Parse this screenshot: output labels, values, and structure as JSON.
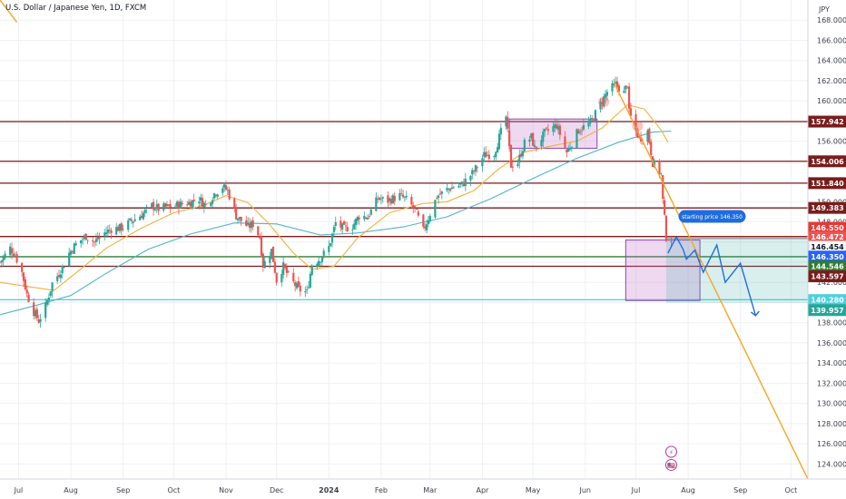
{
  "header": {
    "title": "U.S. Dollar / Japanese Yen, 1D, FXCM",
    "currency": "JPY"
  },
  "colors": {
    "up": "#26a69a",
    "down": "#ef5350",
    "level": "#7a1c1c",
    "ma_fast": "#f0b23c",
    "ma_slow": "#4fb5c8",
    "trend": "#f5a623",
    "green_line": "#2e7d32",
    "cyan_line": "#4dd0e1",
    "projection": "#1e6de0"
  },
  "chart_data": {
    "type": "candlestick",
    "title": "U.S. Dollar / Japanese Yen, 1D, FXCM",
    "ylabel": "JPY",
    "ylim": [
      122.5,
      170
    ],
    "xlim": [
      "2023-07-04",
      "2024-10-25"
    ],
    "y_ticks": [
      124,
      126,
      128,
      130,
      132,
      134,
      136,
      138,
      140,
      142,
      144,
      146,
      148,
      150,
      152,
      154,
      156,
      158,
      160,
      162,
      164,
      166,
      168
    ],
    "y_tick_labels": [
      "124.000",
      "126.000",
      "128.000",
      "130.000",
      "132.000",
      "134.000",
      "136.000",
      "138.000",
      "140.000",
      "142.000",
      "144.000",
      "146.000",
      "148.000",
      "150.000",
      "152.000",
      "154.000",
      "156.000",
      "158.000",
      "160.000",
      "162.000",
      "164.000",
      "166.000",
      "168.000"
    ],
    "x_ticks": [
      {
        "date": "2023-07-15",
        "label": "Jul",
        "bold": false
      },
      {
        "date": "2023-08-15",
        "label": "Aug",
        "bold": false
      },
      {
        "date": "2023-09-15",
        "label": "Sep",
        "bold": false
      },
      {
        "date": "2023-10-15",
        "label": "Oct",
        "bold": false
      },
      {
        "date": "2023-11-15",
        "label": "Nov",
        "bold": false
      },
      {
        "date": "2023-12-15",
        "label": "Dec",
        "bold": false
      },
      {
        "date": "2024-01-15",
        "label": "2024",
        "bold": true
      },
      {
        "date": "2024-02-15",
        "label": "Feb",
        "bold": false
      },
      {
        "date": "2024-03-15",
        "label": "Mar",
        "bold": false
      },
      {
        "date": "2024-04-15",
        "label": "Apr",
        "bold": false
      },
      {
        "date": "2024-05-15",
        "label": "May",
        "bold": false
      },
      {
        "date": "2024-06-15",
        "label": "Jun",
        "bold": false
      },
      {
        "date": "2024-07-15",
        "label": "Jul",
        "bold": false
      },
      {
        "date": "2024-08-15",
        "label": "Aug",
        "bold": false
      },
      {
        "date": "2024-09-15",
        "label": "Sep",
        "bold": false
      },
      {
        "date": "2024-10-15",
        "label": "Oct",
        "bold": false
      }
    ],
    "price_path": [
      [
        "2023-07-04",
        144.0
      ],
      [
        "2023-07-10",
        145.4
      ],
      [
        "2023-07-13",
        144.7
      ],
      [
        "2023-07-17",
        143.0
      ],
      [
        "2023-07-20",
        140.8
      ],
      [
        "2023-07-24",
        139.1
      ],
      [
        "2023-07-27",
        138.2
      ],
      [
        "2023-07-31",
        139.6
      ],
      [
        "2023-08-04",
        141.9
      ],
      [
        "2023-08-08",
        142.9
      ],
      [
        "2023-08-11",
        143.8
      ],
      [
        "2023-08-14",
        144.9
      ],
      [
        "2023-08-18",
        145.8
      ],
      [
        "2023-08-24",
        146.6
      ],
      [
        "2023-08-29",
        146.0
      ],
      [
        "2023-09-04",
        146.9
      ],
      [
        "2023-09-08",
        147.3
      ],
      [
        "2023-09-14",
        147.4
      ],
      [
        "2023-09-20",
        148.1
      ],
      [
        "2023-09-26",
        148.7
      ],
      [
        "2023-10-02",
        149.6
      ],
      [
        "2023-10-06",
        149.3
      ],
      [
        "2023-10-12",
        149.5
      ],
      [
        "2023-10-18",
        149.7
      ],
      [
        "2023-10-24",
        149.9
      ],
      [
        "2023-10-30",
        150.3
      ],
      [
        "2023-11-03",
        149.6
      ],
      [
        "2023-11-08",
        150.8
      ],
      [
        "2023-11-13",
        151.5
      ],
      [
        "2023-11-16",
        151.1
      ],
      [
        "2023-11-21",
        148.6
      ],
      [
        "2023-11-28",
        147.5
      ],
      [
        "2023-12-01",
        147.8
      ],
      [
        "2023-12-05",
        146.5
      ],
      [
        "2023-12-07",
        143.7
      ],
      [
        "2023-12-12",
        145.2
      ],
      [
        "2023-12-15",
        142.2
      ],
      [
        "2023-12-19",
        143.6
      ],
      [
        "2023-12-22",
        142.6
      ],
      [
        "2023-12-28",
        141.3
      ],
      [
        "2024-01-02",
        141.0
      ],
      [
        "2024-01-05",
        143.8
      ],
      [
        "2024-01-10",
        144.4
      ],
      [
        "2024-01-15",
        145.5
      ],
      [
        "2024-01-19",
        147.9
      ],
      [
        "2024-01-24",
        147.3
      ],
      [
        "2024-01-29",
        147.6
      ],
      [
        "2024-02-02",
        148.6
      ],
      [
        "2024-02-07",
        148.5
      ],
      [
        "2024-02-13",
        150.3
      ],
      [
        "2024-02-19",
        150.1
      ],
      [
        "2024-02-26",
        150.6
      ],
      [
        "2024-03-01",
        150.2
      ],
      [
        "2024-03-06",
        149.2
      ],
      [
        "2024-03-11",
        147.1
      ],
      [
        "2024-03-14",
        148.4
      ],
      [
        "2024-03-19",
        150.5
      ],
      [
        "2024-03-26",
        151.3
      ],
      [
        "2024-04-03",
        151.7
      ],
      [
        "2024-04-10",
        153.0
      ],
      [
        "2024-04-16",
        154.6
      ],
      [
        "2024-04-22",
        154.8
      ],
      [
        "2024-04-26",
        156.9
      ],
      [
        "2024-04-29",
        158.4
      ],
      [
        "2024-05-02",
        153.6
      ],
      [
        "2024-05-06",
        153.9
      ],
      [
        "2024-05-10",
        155.8
      ],
      [
        "2024-05-14",
        156.4
      ],
      [
        "2024-05-16",
        155.3
      ],
      [
        "2024-05-22",
        156.8
      ],
      [
        "2024-05-29",
        157.6
      ],
      [
        "2024-06-04",
        154.9
      ],
      [
        "2024-06-11",
        157.1
      ],
      [
        "2024-06-18",
        157.8
      ],
      [
        "2024-06-24",
        159.7
      ],
      [
        "2024-06-28",
        160.9
      ],
      [
        "2024-07-03",
        161.6
      ],
      [
        "2024-07-08",
        160.8
      ],
      [
        "2024-07-10",
        161.7
      ],
      [
        "2024-07-11",
        158.8
      ],
      [
        "2024-07-17",
        156.2
      ],
      [
        "2024-07-22",
        157.0
      ],
      [
        "2024-07-25",
        153.9
      ],
      [
        "2024-07-30",
        152.7
      ],
      [
        "2024-07-31",
        150.1
      ],
      [
        "2024-08-02",
        146.5
      ],
      [
        "2024-08-05",
        146.35
      ]
    ],
    "ma_fast": [
      [
        "2023-07-04",
        142.0
      ],
      [
        "2023-07-20",
        141.6
      ],
      [
        "2023-08-05",
        141.2
      ],
      [
        "2023-08-20",
        143.2
      ],
      [
        "2023-09-05",
        145.4
      ],
      [
        "2023-09-25",
        147.3
      ],
      [
        "2023-10-15",
        148.9
      ],
      [
        "2023-11-01",
        149.6
      ],
      [
        "2023-11-15",
        150.6
      ],
      [
        "2023-11-28",
        149.9
      ],
      [
        "2023-12-10",
        147.9
      ],
      [
        "2023-12-25",
        144.9
      ],
      [
        "2024-01-05",
        143.3
      ],
      [
        "2024-01-18",
        143.6
      ],
      [
        "2024-02-01",
        146.4
      ],
      [
        "2024-02-20",
        148.9
      ],
      [
        "2024-03-10",
        149.8
      ],
      [
        "2024-03-25",
        150.0
      ],
      [
        "2024-04-10",
        151.1
      ],
      [
        "2024-04-25",
        153.3
      ],
      [
        "2024-05-10",
        154.9
      ],
      [
        "2024-05-25",
        155.5
      ],
      [
        "2024-06-10",
        156.0
      ],
      [
        "2024-06-25",
        157.3
      ],
      [
        "2024-07-10",
        159.6
      ],
      [
        "2024-07-20",
        159.2
      ],
      [
        "2024-07-30",
        157.1
      ],
      [
        "2024-08-03",
        155.9
      ]
    ],
    "ma_slow": [
      [
        "2023-07-04",
        138.8
      ],
      [
        "2023-07-25",
        139.7
      ],
      [
        "2023-08-15",
        140.7
      ],
      [
        "2023-09-05",
        142.9
      ],
      [
        "2023-09-30",
        145.3
      ],
      [
        "2023-10-25",
        146.8
      ],
      [
        "2023-11-20",
        147.9
      ],
      [
        "2023-12-15",
        147.8
      ],
      [
        "2024-01-10",
        146.7
      ],
      [
        "2024-02-01",
        146.9
      ],
      [
        "2024-02-28",
        147.5
      ],
      [
        "2024-03-25",
        148.5
      ],
      [
        "2024-04-20",
        150.3
      ],
      [
        "2024-05-15",
        152.3
      ],
      [
        "2024-06-10",
        154.3
      ],
      [
        "2024-07-05",
        155.9
      ],
      [
        "2024-07-25",
        156.9
      ],
      [
        "2024-08-05",
        157.0
      ]
    ],
    "trendline": {
      "from": [
        "2024-07-02",
        161.8
      ],
      "to": [
        "2024-10-25",
        122.5
      ]
    },
    "top_trendline": {
      "from": [
        "2023-07-04",
        170.0
      ],
      "to": [
        "2023-07-14",
        167.8
      ]
    },
    "horizontal_levels": [
      {
        "value": 157.942,
        "color": "level"
      },
      {
        "value": 154.006,
        "color": "level"
      },
      {
        "value": 151.84,
        "color": "level"
      },
      {
        "value": 149.383,
        "color": "level"
      },
      {
        "value": 146.55,
        "color": "level"
      },
      {
        "value": 144.546,
        "color": "green"
      },
      {
        "value": 143.597,
        "color": "level"
      },
      {
        "value": 140.28,
        "color": "cyan"
      }
    ],
    "boxes": [
      {
        "x1": "2024-05-01",
        "x2": "2024-06-22",
        "y1": 155.3,
        "y2": 158.2,
        "fill": "rgba(186,104,200,0.25)",
        "stroke": "#8e44ad"
      },
      {
        "x1": "2024-07-09",
        "x2": "2024-08-22",
        "y1": 140.2,
        "y2": 146.2,
        "fill": "rgba(186,104,200,0.25)",
        "stroke": "#8e44ad"
      }
    ],
    "position": {
      "x1": "2024-08-02",
      "x2": "2024-10-25",
      "entry": 146.35,
      "target_top": 146.55,
      "stop": 139.957
    },
    "projection_path": [
      [
        "2024-08-03",
        144.9
      ],
      [
        "2024-08-08",
        146.5
      ],
      [
        "2024-08-12",
        145.3
      ],
      [
        "2024-08-14",
        144.3
      ],
      [
        "2024-08-19",
        145.2
      ],
      [
        "2024-08-24",
        143.0
      ],
      [
        "2024-09-01",
        145.7
      ],
      [
        "2024-09-06",
        142.0
      ],
      [
        "2024-09-15",
        143.9
      ],
      [
        "2024-09-24",
        138.7
      ]
    ],
    "highlight_circles": [
      {
        "date": "2024-06-26",
        "value": 159.9
      },
      {
        "date": "2024-07-16",
        "value": 157.5
      }
    ],
    "annotation": {
      "date": "2024-08-05",
      "value": 148.0,
      "text": "starting price 146.350"
    },
    "event_icons": [
      {
        "date": "2024-08-05",
        "value": 125.2,
        "label": "⚡"
      },
      {
        "date": "2024-08-05",
        "value": 123.9,
        "label": "🇺🇸"
      }
    ],
    "price_tags": [
      {
        "label": "157.942",
        "value": 157.942,
        "bg": "#7a1c1c",
        "fg": "#ffffff"
      },
      {
        "label": "154.006",
        "value": 154.006,
        "bg": "#7a1c1c",
        "fg": "#ffffff"
      },
      {
        "label": "151.840",
        "value": 151.84,
        "bg": "#7a1c1c",
        "fg": "#ffffff"
      },
      {
        "label": "149.383",
        "value": 149.383,
        "bg": "#7a1c1c",
        "fg": "#ffffff"
      },
      {
        "label": "146.550",
        "value": 147.42,
        "bg": "#e53935",
        "fg": "#ffffff"
      },
      {
        "label": "146.472",
        "value": 146.5,
        "bg": "#ef5350",
        "fg": "#ffffff"
      },
      {
        "label": "146.454",
        "value": 145.55,
        "bg": "#ffffff",
        "fg": "#131722"
      },
      {
        "label": "146.350",
        "value": 144.56,
        "bg": "#2962ff",
        "fg": "#ffffff"
      },
      {
        "label": "144.546",
        "value": 143.58,
        "bg": "#2e7d32",
        "fg": "#ffffff"
      },
      {
        "label": "143.597",
        "value": 142.6,
        "bg": "#7a1c1c",
        "fg": "#ffffff"
      },
      {
        "label": "140.280",
        "value": 140.25,
        "bg": "#4dd0e1",
        "fg": "#ffffff"
      },
      {
        "label": "139.957",
        "value": 139.25,
        "bg": "#26a69a",
        "fg": "#ffffff"
      }
    ]
  }
}
